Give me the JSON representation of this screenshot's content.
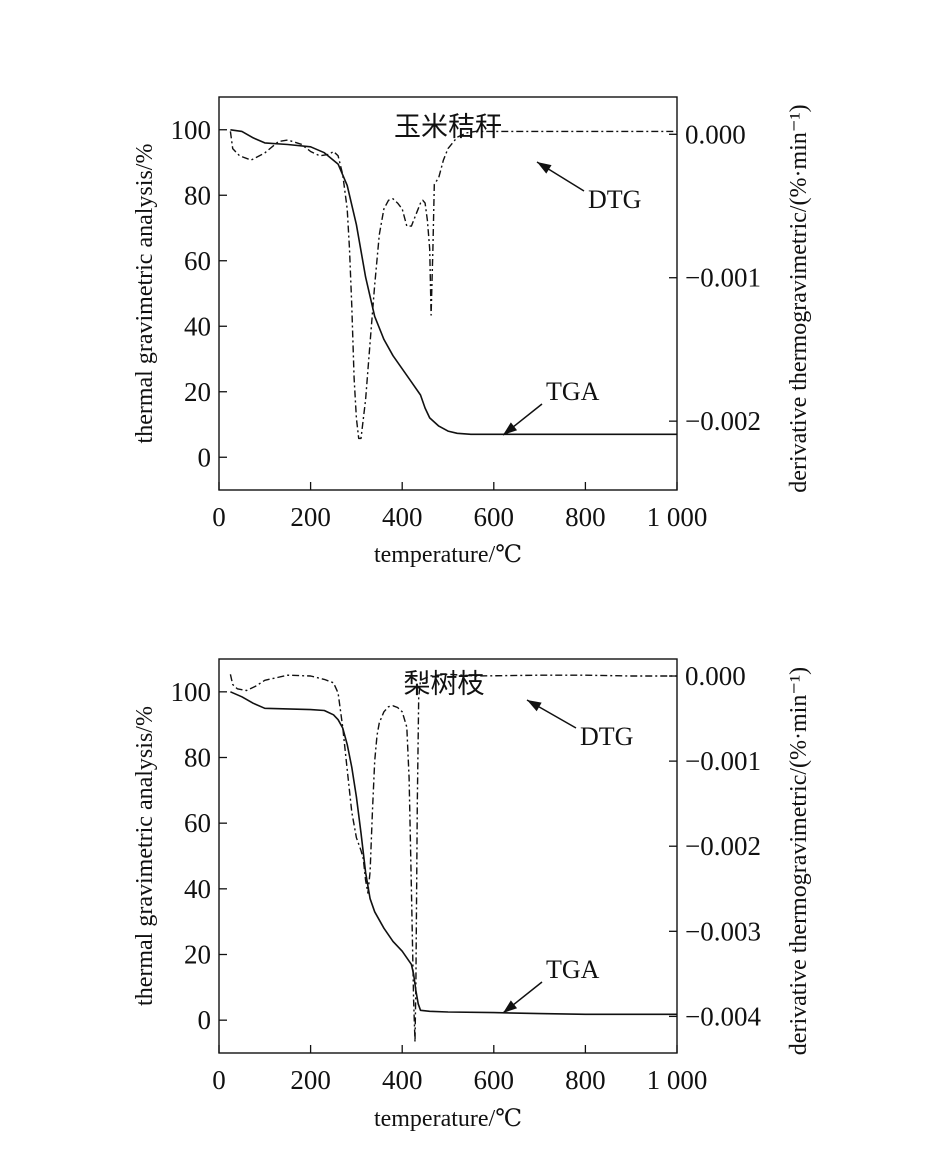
{
  "chart_data": [
    {
      "type": "line",
      "title": "玉米秸秆",
      "xlabel": "temperature/℃",
      "ylabel": "thermal gravimetric analysis/%",
      "y2label": "derivative thermogravimetric/(%·min⁻¹)",
      "xlim": [
        0,
        1000
      ],
      "ylim": [
        -10,
        110
      ],
      "y2lim": [
        -0.00248,
        0.00026
      ],
      "xticks": [
        0,
        200,
        400,
        600,
        800,
        1000
      ],
      "xtick_labels": [
        "0",
        "200",
        "400",
        "600",
        "800",
        "1 000"
      ],
      "yticks": [
        0,
        20,
        40,
        60,
        80,
        100
      ],
      "ytick_labels": [
        "0",
        "20",
        "40",
        "60",
        "80",
        "100"
      ],
      "y2ticks": [
        0,
        -0.001,
        -0.002
      ],
      "y2tick_labels": [
        "0.000",
        "−0.001",
        "−0.002"
      ],
      "grid": false,
      "series": [
        {
          "name": "TGA",
          "axis": "left",
          "style": "solid",
          "x": [
            25,
            50,
            75,
            100,
            150,
            200,
            230,
            260,
            280,
            300,
            320,
            340,
            360,
            380,
            400,
            420,
            440,
            450,
            460,
            480,
            500,
            520,
            550,
            600,
            700,
            800,
            900,
            1000
          ],
          "y": [
            100,
            99.5,
            97.5,
            96,
            95.5,
            94.8,
            93,
            89.5,
            83,
            71,
            55,
            43,
            36,
            31,
            27,
            23,
            19,
            15,
            12,
            9.5,
            8,
            7.3,
            7,
            7,
            7,
            7,
            7,
            7
          ]
        },
        {
          "name": "DTG",
          "axis": "right",
          "style": "dash-dot",
          "x": [
            25,
            30,
            45,
            70,
            100,
            130,
            150,
            180,
            200,
            220,
            240,
            250,
            260,
            270,
            280,
            285,
            290,
            295,
            300,
            305,
            310,
            320,
            330,
            340,
            350,
            360,
            370,
            380,
            390,
            400,
            410,
            420,
            430,
            440,
            445,
            450,
            455,
            460,
            463,
            467,
            470,
            480,
            490,
            500,
            520,
            540,
            560,
            600,
            700,
            800,
            900,
            1000
          ],
          "y": [
            2e-05,
            -0.0001,
            -0.00015,
            -0.00018,
            -0.00013,
            -5e-05,
            -4e-05,
            -7e-05,
            -0.00012,
            -0.00015,
            -0.00014,
            -0.00012,
            -0.00015,
            -0.00028,
            -0.00052,
            -0.0008,
            -0.0012,
            -0.0017,
            -0.00198,
            -0.00212,
            -0.00212,
            -0.00185,
            -0.00145,
            -0.00105,
            -0.0007,
            -0.00052,
            -0.00046,
            -0.00045,
            -0.00048,
            -0.00052,
            -0.00064,
            -0.00064,
            -0.00056,
            -0.00048,
            -0.00046,
            -0.00048,
            -0.0006,
            -0.0008,
            -0.00126,
            -0.0008,
            -0.00035,
            -0.0003,
            -0.00018,
            -0.0001,
            -2e-05,
            1e-05,
            2e-05,
            2e-05,
            2e-05,
            2e-05,
            2e-05,
            2e-05
          ]
        }
      ],
      "annotations": [
        "DTG",
        "TGA"
      ]
    },
    {
      "type": "line",
      "title": "梨树枝",
      "xlabel": "temperature/℃",
      "ylabel": "thermal gravimetric analysis/%",
      "y2label": "derivative thermogravimetric/(%·min⁻¹)",
      "xlim": [
        0,
        1000
      ],
      "ylim": [
        -10,
        110
      ],
      "y2lim": [
        -0.00443,
        0.0002
      ],
      "xticks": [
        0,
        200,
        400,
        600,
        800,
        1000
      ],
      "xtick_labels": [
        "0",
        "200",
        "400",
        "600",
        "800",
        "1 000"
      ],
      "yticks": [
        0,
        20,
        40,
        60,
        80,
        100
      ],
      "ytick_labels": [
        "0",
        "20",
        "40",
        "60",
        "80",
        "100"
      ],
      "y2ticks": [
        0,
        -0.001,
        -0.002,
        -0.003,
        -0.004
      ],
      "y2tick_labels": [
        "0.000",
        "−0.001",
        "−0.002",
        "−0.003",
        "−0.004"
      ],
      "grid": false,
      "series": [
        {
          "name": "TGA",
          "axis": "left",
          "style": "solid",
          "x": [
            25,
            50,
            75,
            100,
            150,
            200,
            230,
            250,
            260,
            270,
            280,
            290,
            300,
            310,
            320,
            330,
            340,
            360,
            380,
            400,
            420,
            425,
            430,
            435,
            440,
            460,
            500,
            600,
            700,
            800,
            900,
            1000
          ],
          "y": [
            100,
            98.5,
            96.5,
            95,
            94.8,
            94.6,
            94.3,
            93,
            91.5,
            89,
            84,
            77,
            68,
            57,
            45,
            37,
            33,
            28,
            24,
            21,
            17,
            14,
            9,
            5,
            3,
            2.7,
            2.5,
            2.3,
            2,
            1.8,
            1.8,
            1.8
          ]
        },
        {
          "name": "DTG",
          "axis": "right",
          "style": "dash-dot",
          "x": [
            25,
            30,
            40,
            60,
            80,
            100,
            150,
            200,
            230,
            250,
            260,
            270,
            280,
            290,
            300,
            310,
            315,
            320,
            325,
            330,
            335,
            340,
            345,
            350,
            360,
            370,
            380,
            390,
            400,
            410,
            415,
            420,
            425,
            428,
            430,
            433,
            436,
            440,
            460,
            500,
            560,
            700,
            800,
            900,
            1000
          ],
          "y": [
            2e-05,
            -0.0001,
            -0.00015,
            -0.00017,
            -0.00012,
            -5e-05,
            1e-05,
            0,
            -4e-05,
            -8e-05,
            -0.0002,
            -0.0006,
            -0.0011,
            -0.0016,
            -0.0019,
            -0.00205,
            -0.00215,
            -0.0024,
            -0.00255,
            -0.0023,
            -0.0016,
            -0.001,
            -0.0007,
            -0.00055,
            -0.00042,
            -0.00036,
            -0.00035,
            -0.00037,
            -0.00042,
            -0.0006,
            -0.0012,
            -0.0025,
            -0.0038,
            -0.0043,
            -0.0036,
            -0.0015,
            -0.00025,
            -5e-05,
            0,
            2e-05,
            0,
            1e-05,
            1e-05,
            0,
            0
          ]
        }
      ],
      "annotations": [
        "DTG",
        "TGA"
      ]
    }
  ]
}
